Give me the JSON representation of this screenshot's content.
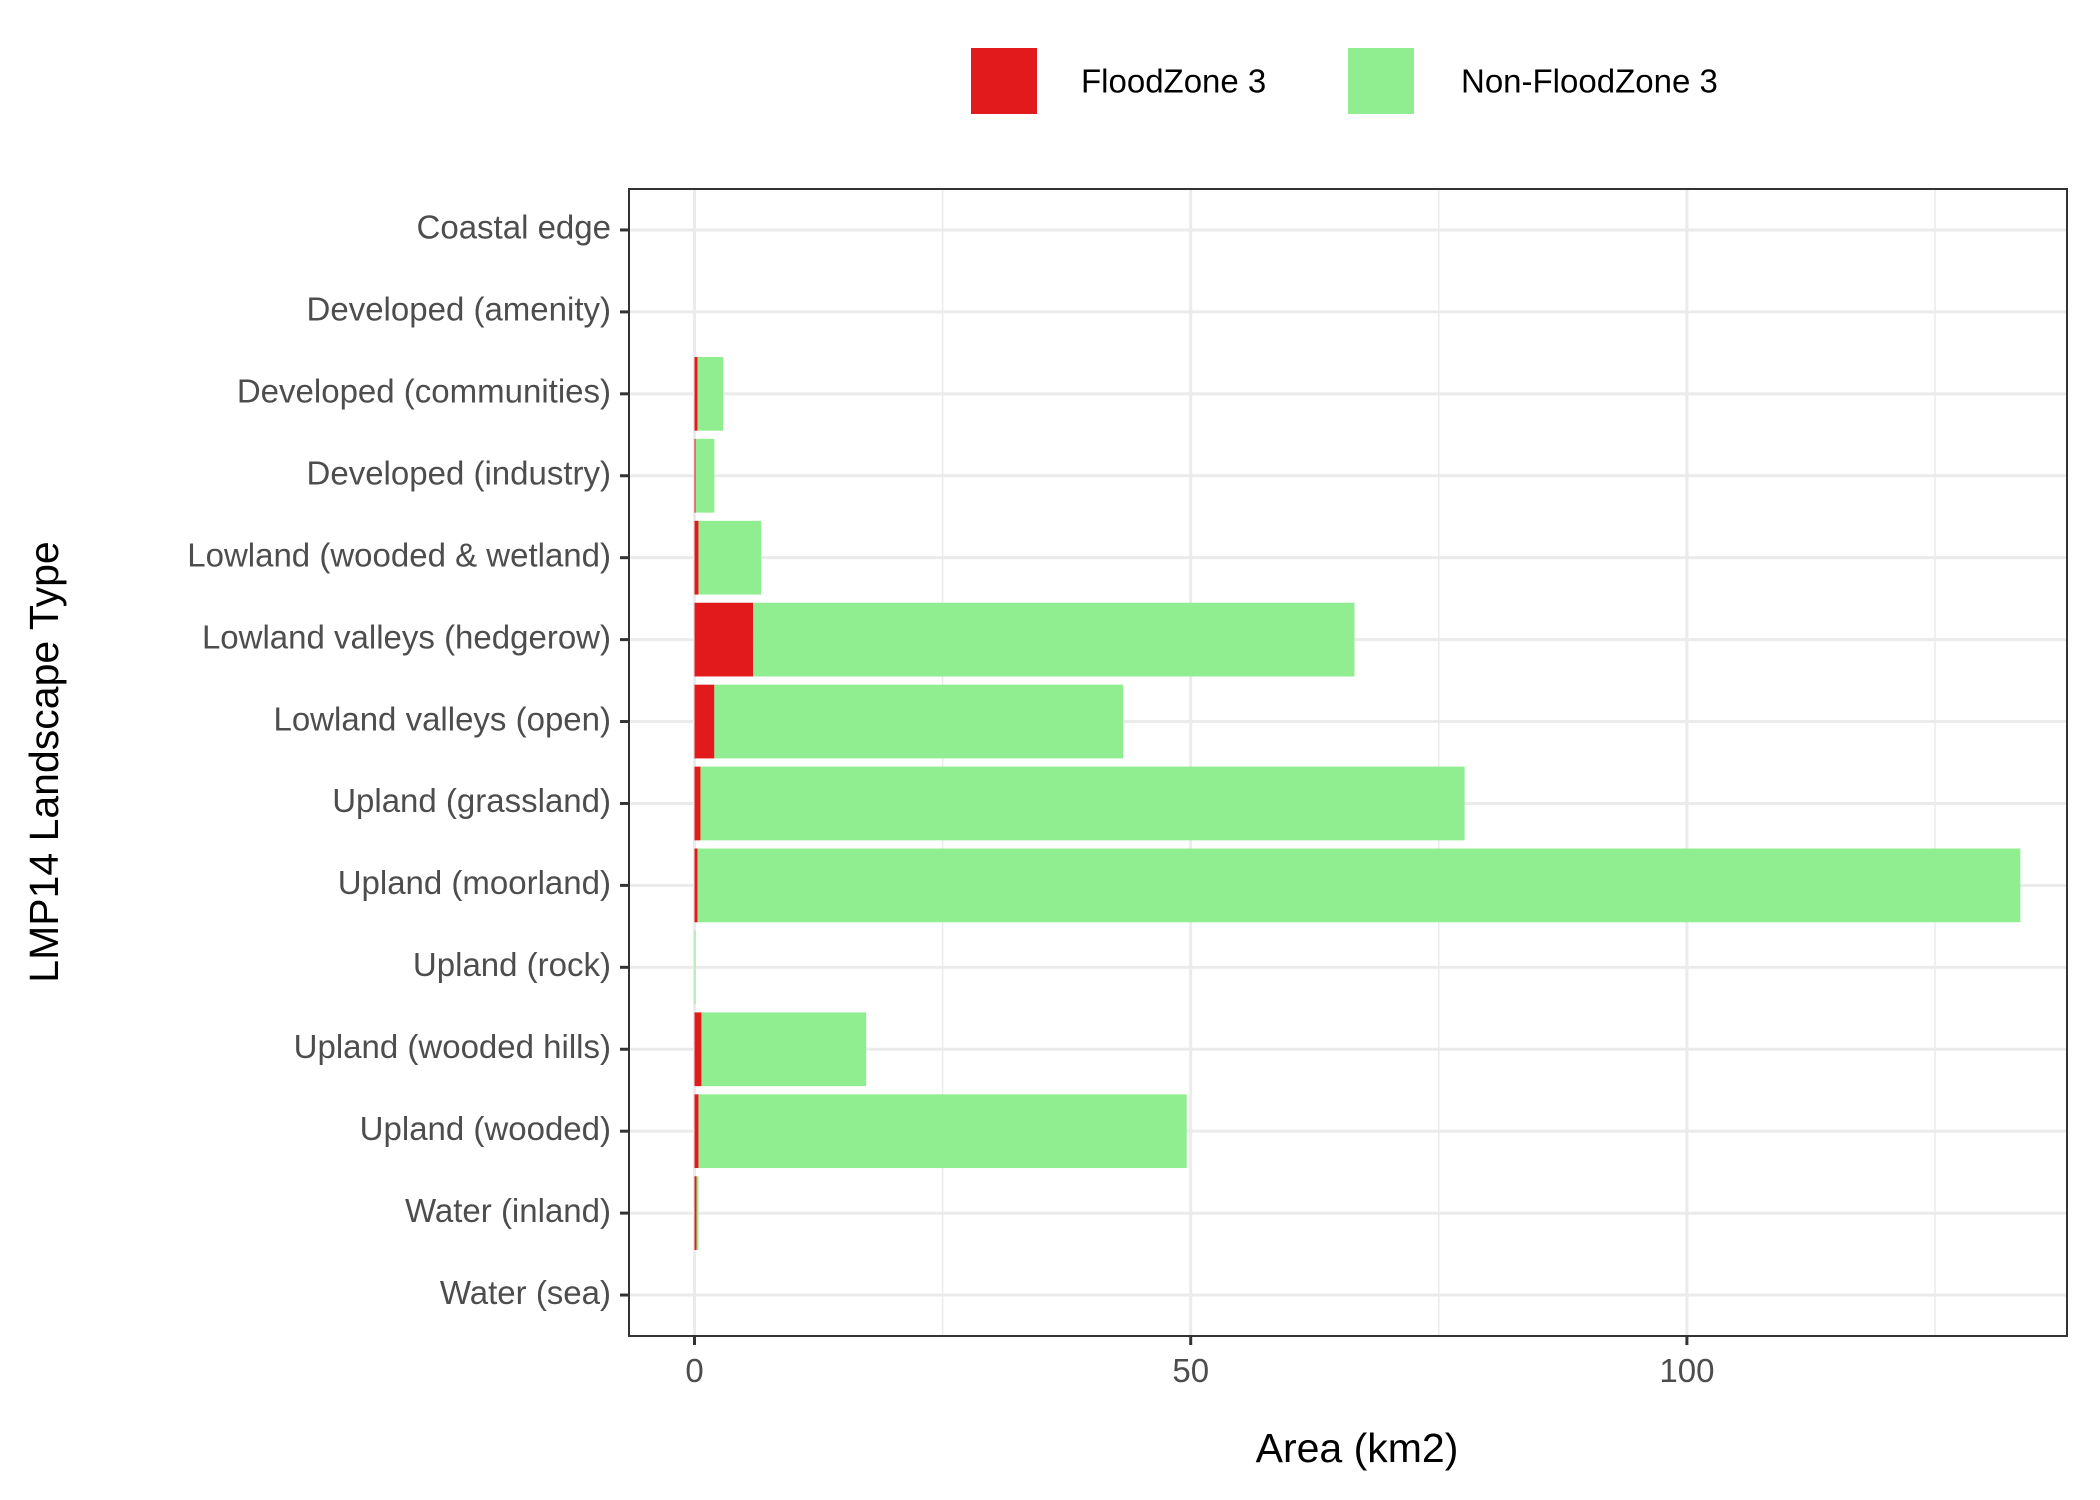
{
  "chart_data": {
    "type": "bar",
    "orientation": "horizontal",
    "stacked": true,
    "categories": [
      "Coastal edge",
      "Developed (amenity)",
      "Developed (communities)",
      "Developed (industry)",
      "Lowland (wooded & wetland)",
      "Lowland valleys (hedgerow)",
      "Lowland valleys (open)",
      "Upland (grassland)",
      "Upland (moorland)",
      "Upland (rock)",
      "Upland (wooded hills)",
      "Upland (wooded)",
      "Water (inland)",
      "Water (sea)"
    ],
    "series": [
      {
        "name": "FloodZone 3",
        "color": "#e31a1c",
        "values": [
          0,
          0,
          0.3,
          0.1,
          0.4,
          5.9,
          2.0,
          0.6,
          0.3,
          0,
          0.7,
          0.4,
          0.2,
          0
        ]
      },
      {
        "name": "Non-FloodZone 3",
        "color": "#90ee90",
        "values": [
          0,
          0,
          2.6,
          1.9,
          6.3,
          60.6,
          41.2,
          77.0,
          133.3,
          0.1,
          16.6,
          49.2,
          0.2,
          0
        ]
      }
    ],
    "xlabel": "Area (km2)",
    "ylabel": "LMP14 Landscape Type",
    "xlim": [
      -6.6,
      138.3
    ],
    "x_ticks": [
      0,
      50,
      100
    ],
    "grid": true,
    "legend_position": "top"
  }
}
